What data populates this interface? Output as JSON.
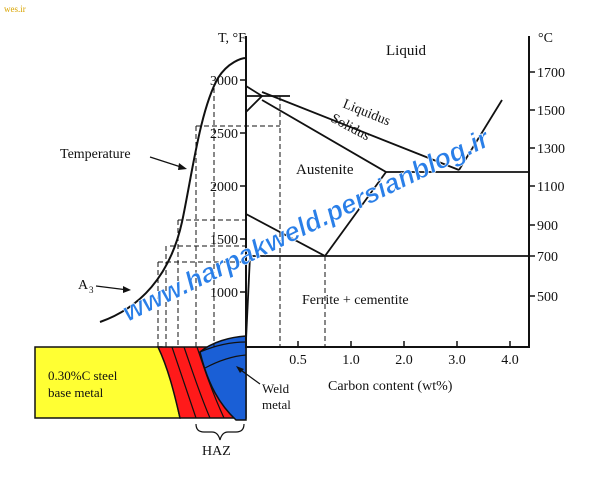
{
  "corner_mark": "wes.ir",
  "left_axis": {
    "title": "T, °F",
    "ticks": [
      {
        "label": "3000",
        "value": 3000
      },
      {
        "label": "2500",
        "value": 2500
      },
      {
        "label": "2000",
        "value": 2000
      },
      {
        "label": "1500",
        "value": 1500
      },
      {
        "label": "1000",
        "value": 1000
      }
    ]
  },
  "right_axis": {
    "title": "°C",
    "ticks": [
      {
        "label": "1700",
        "value": 1700
      },
      {
        "label": "1500",
        "value": 1500
      },
      {
        "label": "1300",
        "value": 1300
      },
      {
        "label": "1100",
        "value": 1100
      },
      {
        "label": "900",
        "value": 900
      },
      {
        "label": "700",
        "value": 700
      },
      {
        "label": "500",
        "value": 500
      }
    ]
  },
  "x_axis": {
    "title": "Carbon content (wt%)",
    "ticks": [
      {
        "label": "0.5",
        "value": 0.5
      },
      {
        "label": "1.0",
        "value": 1.0
      },
      {
        "label": "2.0",
        "value": 2.0
      },
      {
        "label": "3.0",
        "value": 3.0
      },
      {
        "label": "4.0",
        "value": 4.0
      }
    ]
  },
  "phase_labels": {
    "liquid": "Liquid",
    "liquidus": "Liquidus",
    "solidus": "Solidus",
    "austenite": "Austenite",
    "ferrite_cementite": "Ferrite + cementite"
  },
  "curve_labels": {
    "temperature": "Temperature",
    "a3": "A",
    "a3_subscript": "3"
  },
  "specimen": {
    "base_metal_line1": "0.30%C steel",
    "base_metal_line2": "base metal",
    "weld_line1": "Weld",
    "weld_line2": "metal",
    "haz": "HAZ"
  },
  "watermark": "www.harpakweld.persianblog.ir",
  "colors": {
    "base_metal": "#ffff33",
    "haz": "#ff1a1a",
    "weld": "#1a5fd6",
    "watermark": "#2a7fe8",
    "lines": "#111111"
  }
}
